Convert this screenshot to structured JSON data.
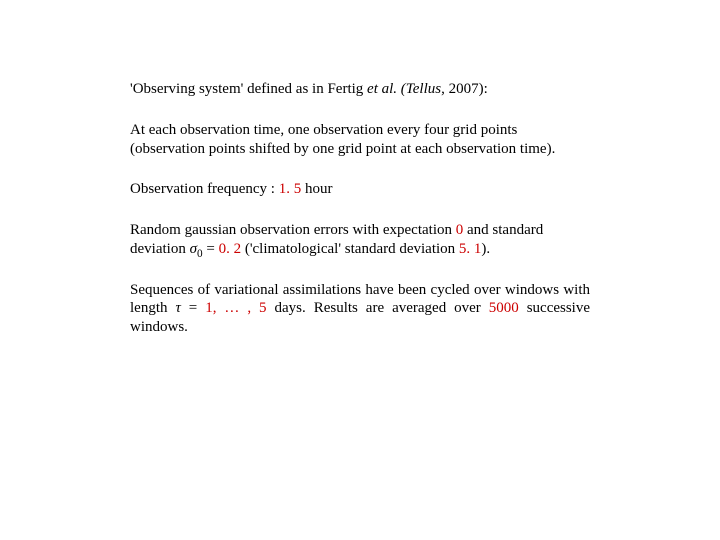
{
  "colors": {
    "text": "#000000",
    "highlight": "#cc0000",
    "background": "#ffffff"
  },
  "typography": {
    "font_family": "Times New Roman",
    "font_size_pt": 15
  },
  "p1": {
    "lead": "'Observing system' defined as in Fertig ",
    "ital": "et al. (Tellus",
    "tail": ", 2007):"
  },
  "p2": "At each observation time, one observation every four grid points (observation points shifted by one grid point at each observation time).",
  "p3": {
    "label": "Observation frequency : ",
    "value": "1. 5",
    "unit": " hour"
  },
  "p4": {
    "a": "Random gaussian observation errors with expectation ",
    "zero": "0",
    "b": " and standard deviation ",
    "sigma": "σ",
    "sub0": "0",
    "eq": " = ",
    "sd": "0. 2",
    "c": " ('climatological' standard deviation ",
    "clim": "5. 1",
    "d": ")."
  },
  "p5": {
    "a": "Sequences of variational assimilations have been cycled over windows with length ",
    "tau": "τ",
    "b": " = ",
    "range": "1, … , 5",
    "c": " days. Results are averaged over ",
    "n": "5000",
    "d": " successive windows."
  }
}
